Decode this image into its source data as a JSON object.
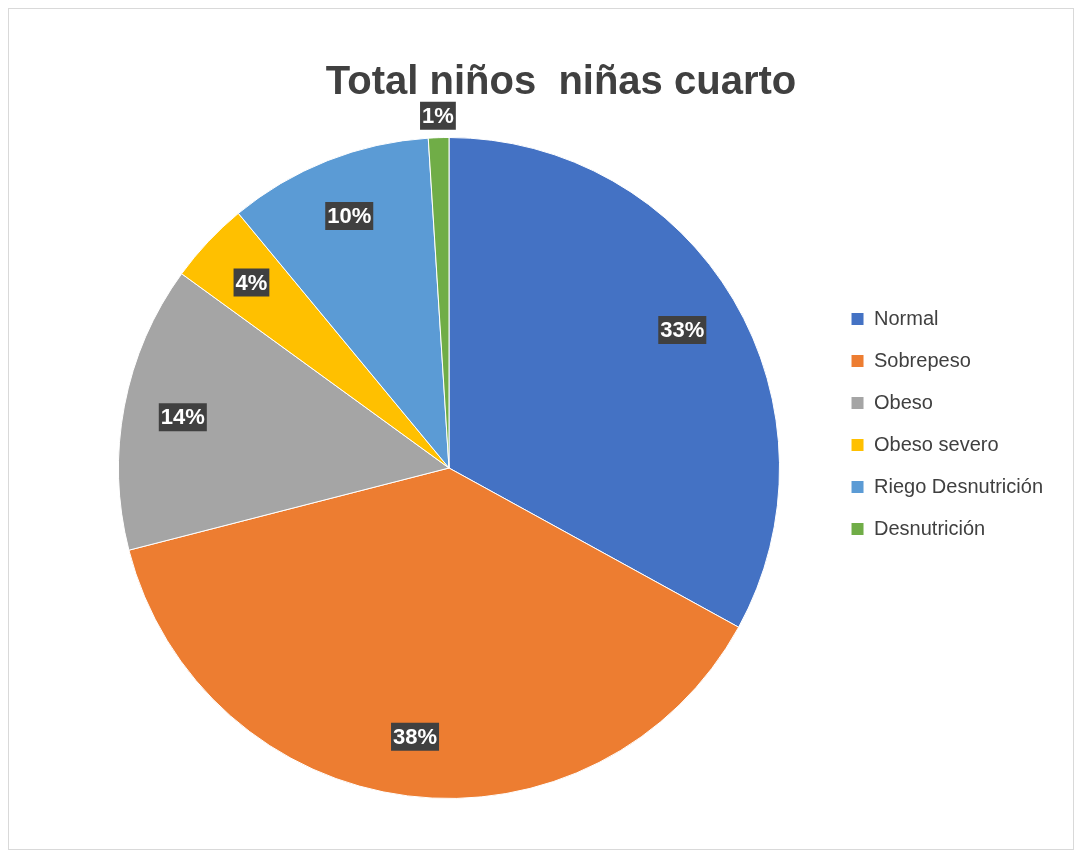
{
  "chart_data": {
    "type": "pie",
    "title": "Total niños  niñas cuarto",
    "categories": [
      "Normal",
      "Sobrepeso",
      "Obeso",
      "Obeso severo",
      "Riego Desnutrición",
      "Desnutrición"
    ],
    "values": [
      33,
      38,
      14,
      4,
      10,
      1
    ],
    "colors": [
      "#4472c4",
      "#ed7d31",
      "#a5a5a5",
      "#ffc000",
      "#5b9bd5",
      "#70ad47"
    ],
    "value_labels": [
      "33%",
      "38%",
      "14%",
      "4%",
      "10%",
      "1%"
    ],
    "legend": "right"
  }
}
